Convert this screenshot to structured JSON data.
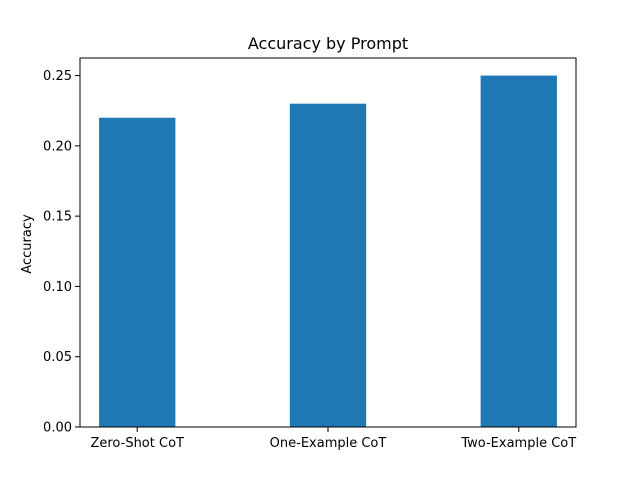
{
  "chart_data": {
    "type": "bar",
    "title": "Accuracy by Prompt",
    "xlabel": "",
    "ylabel": "Accuracy",
    "categories": [
      "Zero-Shot CoT",
      "One-Example CoT",
      "Two-Example CoT"
    ],
    "values": [
      0.22,
      0.23,
      0.25
    ],
    "ylim": [
      0,
      0.2625
    ],
    "yticks": [
      0.0,
      0.05,
      0.1,
      0.15,
      0.2,
      0.25
    ],
    "ytick_labels": [
      "0.00",
      "0.05",
      "0.10",
      "0.15",
      "0.20",
      "0.25"
    ],
    "grid": false,
    "legend": "none",
    "bar_color": "#1f77b4"
  }
}
